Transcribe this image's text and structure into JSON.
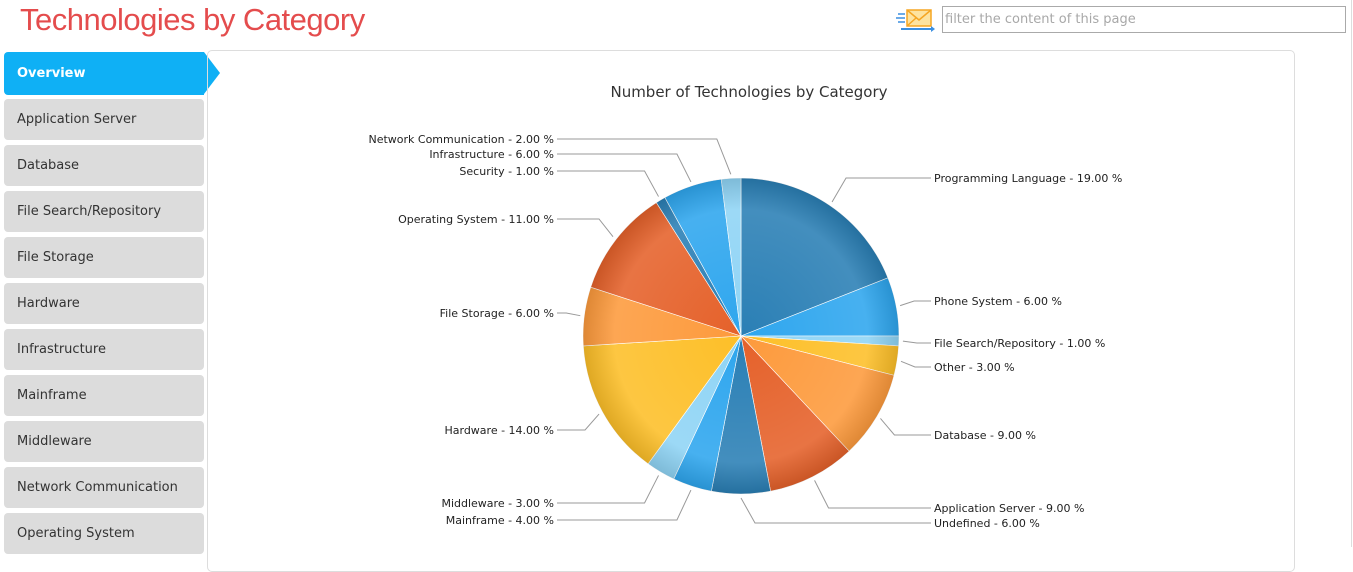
{
  "header": {
    "title": "Technologies by Category",
    "search_placeholder": "filter the content of this page",
    "icon": "mail-icon"
  },
  "sidebar": {
    "items": [
      {
        "label": "Overview",
        "active": true
      },
      {
        "label": "Application Server"
      },
      {
        "label": "Database"
      },
      {
        "label": "File Search/Repository"
      },
      {
        "label": "File Storage"
      },
      {
        "label": "Hardware"
      },
      {
        "label": "Infrastructure"
      },
      {
        "label": "Mainframe"
      },
      {
        "label": "Middleware"
      },
      {
        "label": "Network Communication"
      },
      {
        "label": "Operating System"
      }
    ]
  },
  "chart_data": {
    "type": "pie",
    "title": "Number of Technologies by Category",
    "unit": "%",
    "slices": [
      {
        "name": "Programming Language",
        "value": 19.0,
        "label": "Programming Language - 19.00 %",
        "color": "#2a7fb5"
      },
      {
        "name": "Phone System",
        "value": 6.0,
        "label": "Phone System - 6.00 %",
        "color": "#2ea6ee"
      },
      {
        "name": "File Search/Repository",
        "value": 1.0,
        "label": "File Search/Repository - 1.00 %",
        "color": "#8fd4f5"
      },
      {
        "name": "Other",
        "value": 3.0,
        "label": "Other - 3.00 %",
        "color": "#fdbf28"
      },
      {
        "name": "Database",
        "value": 9.0,
        "label": "Database - 9.00 %",
        "color": "#fd9a3c"
      },
      {
        "name": "Application Server",
        "value": 9.0,
        "label": "Application Server - 9.00 %",
        "color": "#e5612a"
      },
      {
        "name": "Undefined",
        "value": 6.0,
        "label": "Undefined - 6.00 %",
        "color": "#2a7fb5"
      },
      {
        "name": "Mainframe",
        "value": 4.0,
        "label": "Mainframe - 4.00 %",
        "color": "#2ea6ee"
      },
      {
        "name": "Middleware",
        "value": 3.0,
        "label": "Middleware - 3.00 %",
        "color": "#8fd4f5"
      },
      {
        "name": "Hardware",
        "value": 14.0,
        "label": "Hardware - 14.00 %",
        "color": "#fdbf28"
      },
      {
        "name": "File Storage",
        "value": 6.0,
        "label": "File Storage - 6.00 %",
        "color": "#fd9a3c"
      },
      {
        "name": "Operating System",
        "value": 11.0,
        "label": "Operating System - 11.00 %",
        "color": "#e5612a"
      },
      {
        "name": "Security",
        "value": 1.0,
        "label": "Security - 1.00 %",
        "color": "#2a7fb5"
      },
      {
        "name": "Infrastructure",
        "value": 6.0,
        "label": "Infrastructure - 6.00 %",
        "color": "#2ea6ee"
      },
      {
        "name": "Network Communication",
        "value": 2.0,
        "label": "Network Communication - 2.00 %",
        "color": "#8fd4f5"
      }
    ]
  }
}
